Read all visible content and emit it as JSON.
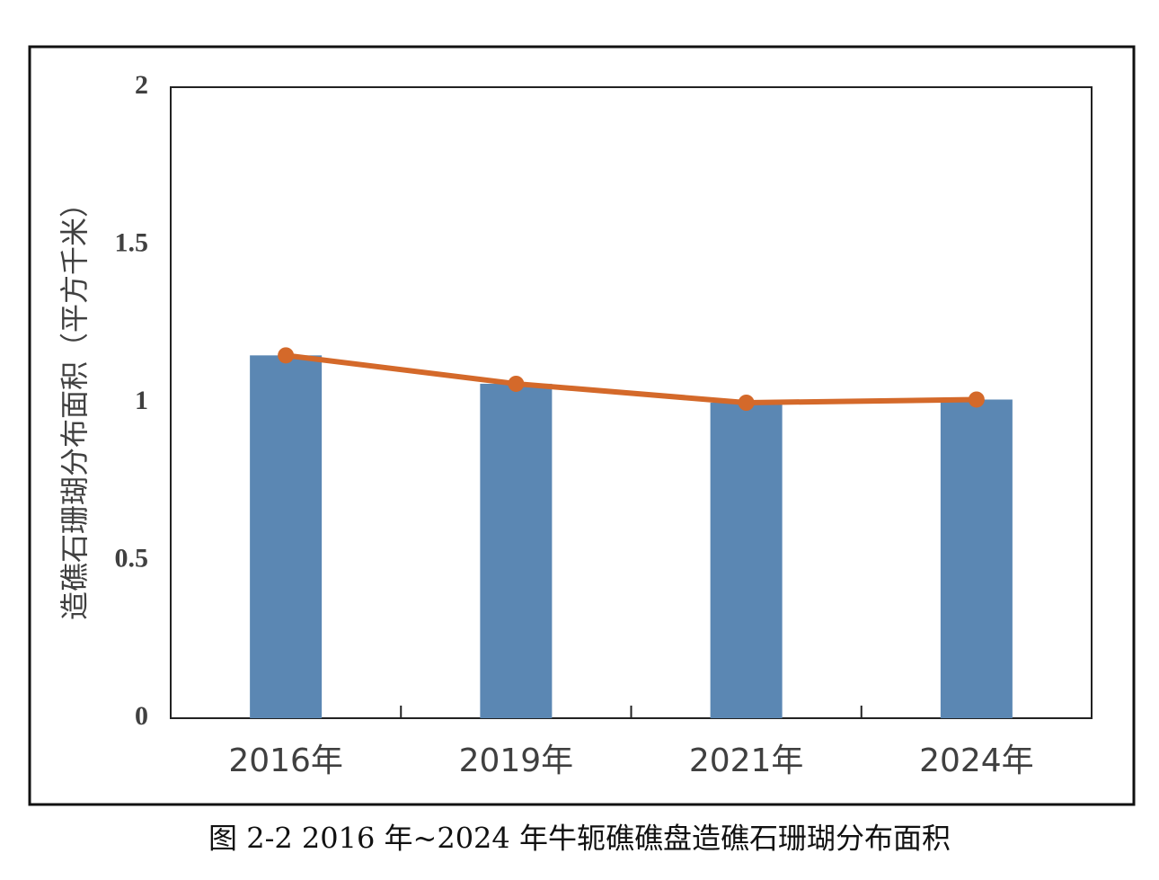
{
  "chart_data": {
    "type": "bar",
    "y_label": "造礁石珊瑚分布面积（平方千米）",
    "caption": "图 2-2 2016 年~2024 年牛轭礁礁盘造礁石珊瑚分布面积",
    "categories": [
      "2016年",
      "2019年",
      "2021年",
      "2024年"
    ],
    "series": [
      {
        "type": "bar",
        "color": "#5b87b3",
        "values": [
          1.15,
          1.06,
          1.0,
          1.01
        ]
      },
      {
        "type": "line",
        "color": "#d4692a",
        "values": [
          1.15,
          1.06,
          1.0,
          1.01
        ]
      }
    ],
    "ylim": [
      0,
      2
    ],
    "yticks": [
      0,
      0.5,
      1,
      1.5,
      2
    ],
    "grid": false
  }
}
